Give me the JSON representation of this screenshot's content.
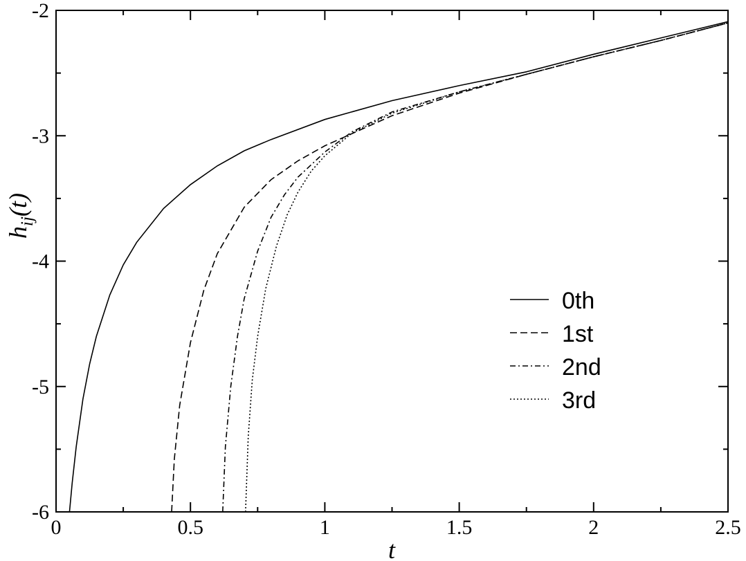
{
  "chart_data": {
    "type": "line",
    "title": "",
    "xlabel": "t",
    "ylabel": "h_ij(t)",
    "xlim": [
      0,
      2.5
    ],
    "ylim": [
      -6,
      -2
    ],
    "x_ticks": [
      0,
      0.5,
      1,
      1.5,
      2,
      2.5
    ],
    "x_tick_labels": [
      "0",
      "0.5",
      "1",
      "1.5",
      "2",
      "2.5"
    ],
    "y_ticks": [
      -6,
      -5,
      -4,
      -3,
      -2
    ],
    "y_tick_labels": [
      "-6",
      "-5",
      "-4",
      "-3",
      "-2"
    ],
    "grid": false,
    "legend": {
      "placement": "center-right"
    },
    "series": [
      {
        "name": "0th",
        "dash": "solid",
        "x": [
          0.05,
          0.06,
          0.075,
          0.1,
          0.125,
          0.15,
          0.2,
          0.25,
          0.3,
          0.4,
          0.5,
          0.6,
          0.7,
          0.8,
          1.0,
          1.25,
          1.5,
          1.75,
          2.0,
          2.25,
          2.5
        ],
        "y": [
          -6.0,
          -5.77,
          -5.48,
          -5.1,
          -4.82,
          -4.6,
          -4.27,
          -4.03,
          -3.85,
          -3.58,
          -3.39,
          -3.24,
          -3.12,
          -3.03,
          -2.87,
          -2.72,
          -2.6,
          -2.49,
          -2.35,
          -2.22,
          -2.09
        ]
      },
      {
        "name": "1st",
        "dash": "dashed",
        "x": [
          0.43,
          0.44,
          0.46,
          0.5,
          0.55,
          0.6,
          0.7,
          0.8,
          0.9,
          1.0,
          1.25,
          1.5,
          1.75,
          2.0,
          2.25,
          2.5
        ],
        "y": [
          -6.0,
          -5.58,
          -5.15,
          -4.65,
          -4.23,
          -3.94,
          -3.57,
          -3.35,
          -3.2,
          -3.08,
          -2.84,
          -2.66,
          -2.51,
          -2.37,
          -2.24,
          -2.1
        ]
      },
      {
        "name": "2nd",
        "dash": "dash-dot",
        "x": [
          0.62,
          0.63,
          0.65,
          0.675,
          0.7,
          0.75,
          0.8,
          0.85,
          0.9,
          1.0,
          1.1,
          1.25,
          1.5,
          1.75,
          2.0,
          2.25,
          2.5
        ],
        "y": [
          -6.0,
          -5.48,
          -5.0,
          -4.6,
          -4.3,
          -3.92,
          -3.65,
          -3.47,
          -3.33,
          -3.13,
          -2.97,
          -2.81,
          -2.65,
          -2.51,
          -2.37,
          -2.24,
          -2.1
        ]
      },
      {
        "name": "3rd",
        "dash": "dotted",
        "x": [
          0.705,
          0.715,
          0.73,
          0.75,
          0.78,
          0.82,
          0.86,
          0.9,
          0.95,
          1.0,
          1.1,
          1.25,
          1.5,
          1.75,
          2.0,
          2.25,
          2.5
        ],
        "y": [
          -6.0,
          -5.4,
          -4.95,
          -4.6,
          -4.22,
          -3.88,
          -3.63,
          -3.45,
          -3.28,
          -3.16,
          -2.98,
          -2.82,
          -2.65,
          -2.51,
          -2.37,
          -2.24,
          -2.1
        ]
      }
    ]
  }
}
